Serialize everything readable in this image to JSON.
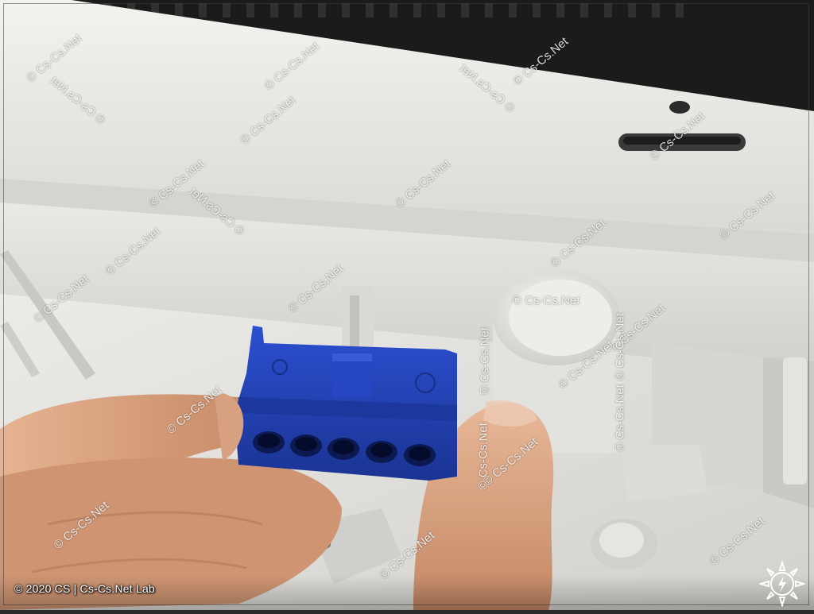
{
  "photo": {
    "subject": "blue-terminal-block-in-hand",
    "colors": {
      "enclosure": "#e4e4e1",
      "connector": "#1f3fb0",
      "skin": "#d9a07c"
    }
  },
  "watermark": {
    "text": "© Cs-Cs.Net",
    "mirrored_text": "© Cs-Cs.Net"
  },
  "caption": {
    "text": "© 2020 CS  |  Cs-Cs.Net Lab"
  },
  "logo": {
    "icon": "lightning-sun-icon"
  }
}
